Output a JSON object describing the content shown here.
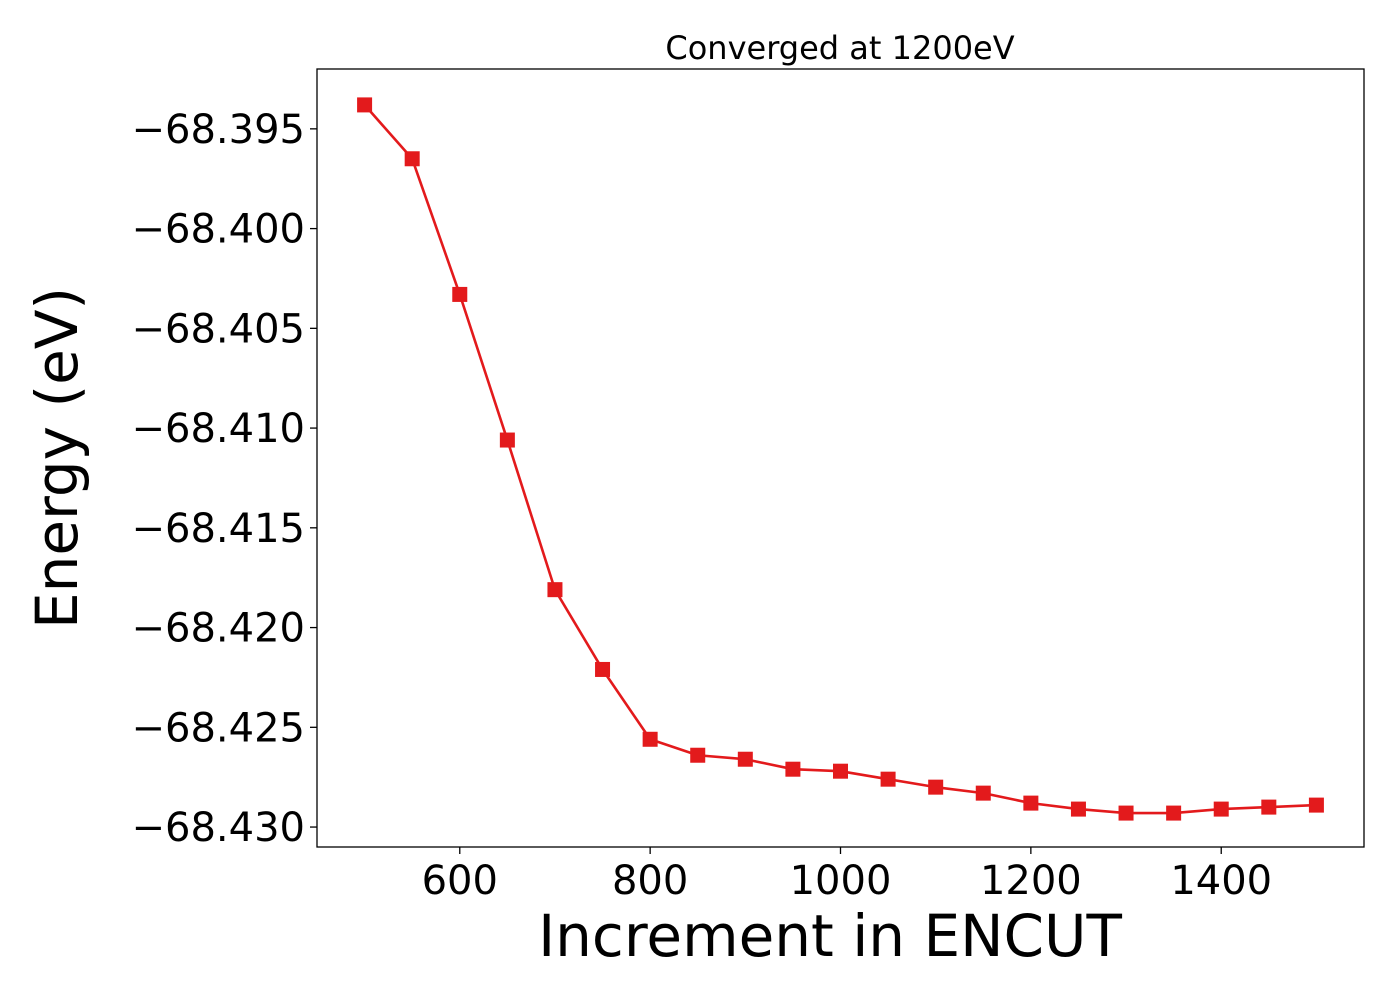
{
  "chart_data": {
    "type": "line",
    "title": "Converged at 1200eV",
    "xlabel": "Increment in ENCUT",
    "ylabel": "Energy (eV)",
    "xlim": [
      450,
      1550
    ],
    "ylim": [
      -68.431,
      -68.392
    ],
    "x_ticks": [
      600,
      800,
      1000,
      1200,
      1400
    ],
    "x_tick_labels": [
      "600",
      "800",
      "1000",
      "1200",
      "1400"
    ],
    "y_ticks": [
      -68.395,
      -68.4,
      -68.405,
      -68.41,
      -68.415,
      -68.42,
      -68.425,
      -68.43
    ],
    "y_tick_labels": [
      "−68.395",
      "−68.400",
      "−68.405",
      "−68.410",
      "−68.415",
      "−68.420",
      "−68.425",
      "−68.430"
    ],
    "grid": false,
    "series": [
      {
        "color": "#e31a1c",
        "marker": "square",
        "x": [
          500,
          550,
          600,
          650,
          700,
          750,
          800,
          850,
          900,
          950,
          1000,
          1050,
          1100,
          1150,
          1200,
          1250,
          1300,
          1350,
          1400,
          1450,
          1500
        ],
        "y": [
          -68.3938,
          -68.3965,
          -68.4033,
          -68.4106,
          -68.4181,
          -68.4221,
          -68.4256,
          -68.4264,
          -68.4266,
          -68.4271,
          -68.4272,
          -68.4276,
          -68.428,
          -68.4283,
          -68.4288,
          -68.4291,
          -68.4293,
          -68.4293,
          -68.4291,
          -68.429,
          -68.4289
        ]
      }
    ]
  }
}
